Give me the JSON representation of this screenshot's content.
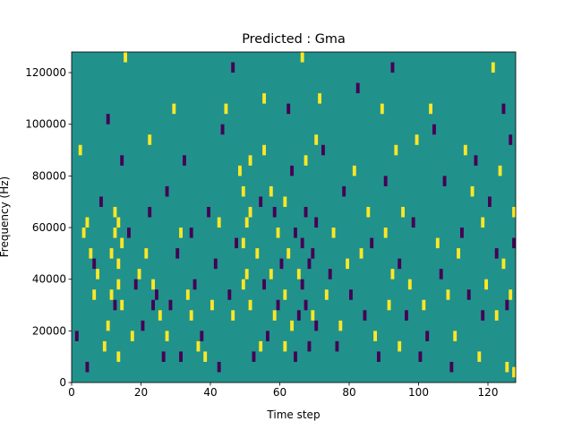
{
  "chart_data": {
    "type": "heatmap",
    "title": "Predicted : Gma",
    "xlabel": "Time step",
    "ylabel": "Frequency (Hz)",
    "xlim": [
      0,
      128
    ],
    "ylim": [
      0,
      128000
    ],
    "x_ticks": [
      0,
      20,
      40,
      60,
      80,
      100,
      120
    ],
    "x_tick_labels": [
      "0",
      "20",
      "40",
      "60",
      "80",
      "100",
      "120"
    ],
    "y_ticks": [
      0,
      20000,
      40000,
      60000,
      80000,
      100000,
      120000
    ],
    "y_tick_labels": [
      "0",
      "20000",
      "40000",
      "60000",
      "80000",
      "100000",
      "120000"
    ],
    "grid": false,
    "colors": {
      "background": "#21918c",
      "low": "#440154",
      "high": "#fde725"
    },
    "cell_size": {
      "time_steps": 1,
      "frequency_hz": 4000
    },
    "high_cells": [
      [
        2,
        88000
      ],
      [
        3,
        56000
      ],
      [
        4,
        60000
      ],
      [
        5,
        48000
      ],
      [
        6,
        32000
      ],
      [
        7,
        40000
      ],
      [
        9,
        12000
      ],
      [
        10,
        20000
      ],
      [
        11,
        32000
      ],
      [
        11,
        48000
      ],
      [
        12,
        56000
      ],
      [
        12,
        64000
      ],
      [
        13,
        8000
      ],
      [
        13,
        36000
      ],
      [
        13,
        44000
      ],
      [
        13,
        60000
      ],
      [
        14,
        28000
      ],
      [
        14,
        52000
      ],
      [
        15,
        124000
      ],
      [
        17,
        16000
      ],
      [
        19,
        40000
      ],
      [
        21,
        48000
      ],
      [
        22,
        92000
      ],
      [
        23,
        36000
      ],
      [
        25,
        24000
      ],
      [
        27,
        16000
      ],
      [
        29,
        104000
      ],
      [
        31,
        56000
      ],
      [
        33,
        32000
      ],
      [
        34,
        24000
      ],
      [
        36,
        12000
      ],
      [
        38,
        8000
      ],
      [
        40,
        28000
      ],
      [
        42,
        60000
      ],
      [
        44,
        104000
      ],
      [
        46,
        24000
      ],
      [
        48,
        80000
      ],
      [
        49,
        36000
      ],
      [
        49,
        52000
      ],
      [
        49,
        72000
      ],
      [
        50,
        40000
      ],
      [
        50,
        60000
      ],
      [
        51,
        28000
      ],
      [
        51,
        64000
      ],
      [
        51,
        84000
      ],
      [
        53,
        48000
      ],
      [
        54,
        12000
      ],
      [
        55,
        88000
      ],
      [
        55,
        108000
      ],
      [
        57,
        40000
      ],
      [
        57,
        72000
      ],
      [
        58,
        24000
      ],
      [
        59,
        56000
      ],
      [
        61,
        12000
      ],
      [
        61,
        32000
      ],
      [
        61,
        68000
      ],
      [
        62,
        48000
      ],
      [
        63,
        20000
      ],
      [
        65,
        40000
      ],
      [
        66,
        124000
      ],
      [
        67,
        84000
      ],
      [
        69,
        24000
      ],
      [
        70,
        92000
      ],
      [
        71,
        108000
      ],
      [
        73,
        32000
      ],
      [
        75,
        56000
      ],
      [
        77,
        20000
      ],
      [
        79,
        44000
      ],
      [
        81,
        80000
      ],
      [
        83,
        48000
      ],
      [
        85,
        64000
      ],
      [
        87,
        16000
      ],
      [
        89,
        104000
      ],
      [
        90,
        56000
      ],
      [
        91,
        28000
      ],
      [
        92,
        40000
      ],
      [
        93,
        88000
      ],
      [
        94,
        12000
      ],
      [
        95,
        64000
      ],
      [
        97,
        36000
      ],
      [
        99,
        92000
      ],
      [
        101,
        28000
      ],
      [
        103,
        104000
      ],
      [
        105,
        52000
      ],
      [
        108,
        32000
      ],
      [
        110,
        16000
      ],
      [
        111,
        48000
      ],
      [
        113,
        88000
      ],
      [
        115,
        72000
      ],
      [
        117,
        8000
      ],
      [
        118,
        60000
      ],
      [
        119,
        36000
      ],
      [
        121,
        120000
      ],
      [
        122,
        24000
      ],
      [
        123,
        80000
      ],
      [
        124,
        44000
      ],
      [
        125,
        4000
      ],
      [
        126,
        32000
      ],
      [
        127,
        2000
      ],
      [
        127,
        64000
      ],
      [
        128,
        12000
      ]
    ],
    "low_cells": [
      [
        1,
        16000
      ],
      [
        4,
        4000
      ],
      [
        6,
        44000
      ],
      [
        8,
        68000
      ],
      [
        10,
        100000
      ],
      [
        12,
        28000
      ],
      [
        14,
        84000
      ],
      [
        16,
        56000
      ],
      [
        18,
        36000
      ],
      [
        20,
        20000
      ],
      [
        22,
        64000
      ],
      [
        23,
        28000
      ],
      [
        24,
        32000
      ],
      [
        26,
        8000
      ],
      [
        27,
        72000
      ],
      [
        28,
        28000
      ],
      [
        30,
        48000
      ],
      [
        31,
        8000
      ],
      [
        32,
        84000
      ],
      [
        34,
        56000
      ],
      [
        35,
        36000
      ],
      [
        37,
        16000
      ],
      [
        39,
        64000
      ],
      [
        41,
        44000
      ],
      [
        42,
        4000
      ],
      [
        43,
        96000
      ],
      [
        45,
        32000
      ],
      [
        46,
        120000
      ],
      [
        47,
        52000
      ],
      [
        52,
        8000
      ],
      [
        54,
        68000
      ],
      [
        55,
        36000
      ],
      [
        56,
        16000
      ],
      [
        58,
        64000
      ],
      [
        59,
        28000
      ],
      [
        60,
        44000
      ],
      [
        62,
        104000
      ],
      [
        63,
        80000
      ],
      [
        64,
        56000
      ],
      [
        64,
        8000
      ],
      [
        65,
        24000
      ],
      [
        66,
        36000
      ],
      [
        66,
        52000
      ],
      [
        67,
        28000
      ],
      [
        67,
        64000
      ],
      [
        68,
        12000
      ],
      [
        68,
        44000
      ],
      [
        69,
        48000
      ],
      [
        70,
        20000
      ],
      [
        70,
        60000
      ],
      [
        72,
        88000
      ],
      [
        74,
        40000
      ],
      [
        76,
        12000
      ],
      [
        78,
        72000
      ],
      [
        80,
        32000
      ],
      [
        82,
        112000
      ],
      [
        84,
        24000
      ],
      [
        86,
        52000
      ],
      [
        88,
        8000
      ],
      [
        90,
        76000
      ],
      [
        92,
        120000
      ],
      [
        94,
        44000
      ],
      [
        96,
        24000
      ],
      [
        98,
        60000
      ],
      [
        100,
        8000
      ],
      [
        102,
        16000
      ],
      [
        104,
        96000
      ],
      [
        106,
        40000
      ],
      [
        107,
        76000
      ],
      [
        109,
        4000
      ],
      [
        112,
        56000
      ],
      [
        114,
        32000
      ],
      [
        116,
        84000
      ],
      [
        118,
        24000
      ],
      [
        120,
        68000
      ],
      [
        122,
        48000
      ],
      [
        124,
        104000
      ],
      [
        125,
        28000
      ],
      [
        126,
        92000
      ],
      [
        127,
        52000
      ],
      [
        128,
        76000
      ]
    ]
  }
}
